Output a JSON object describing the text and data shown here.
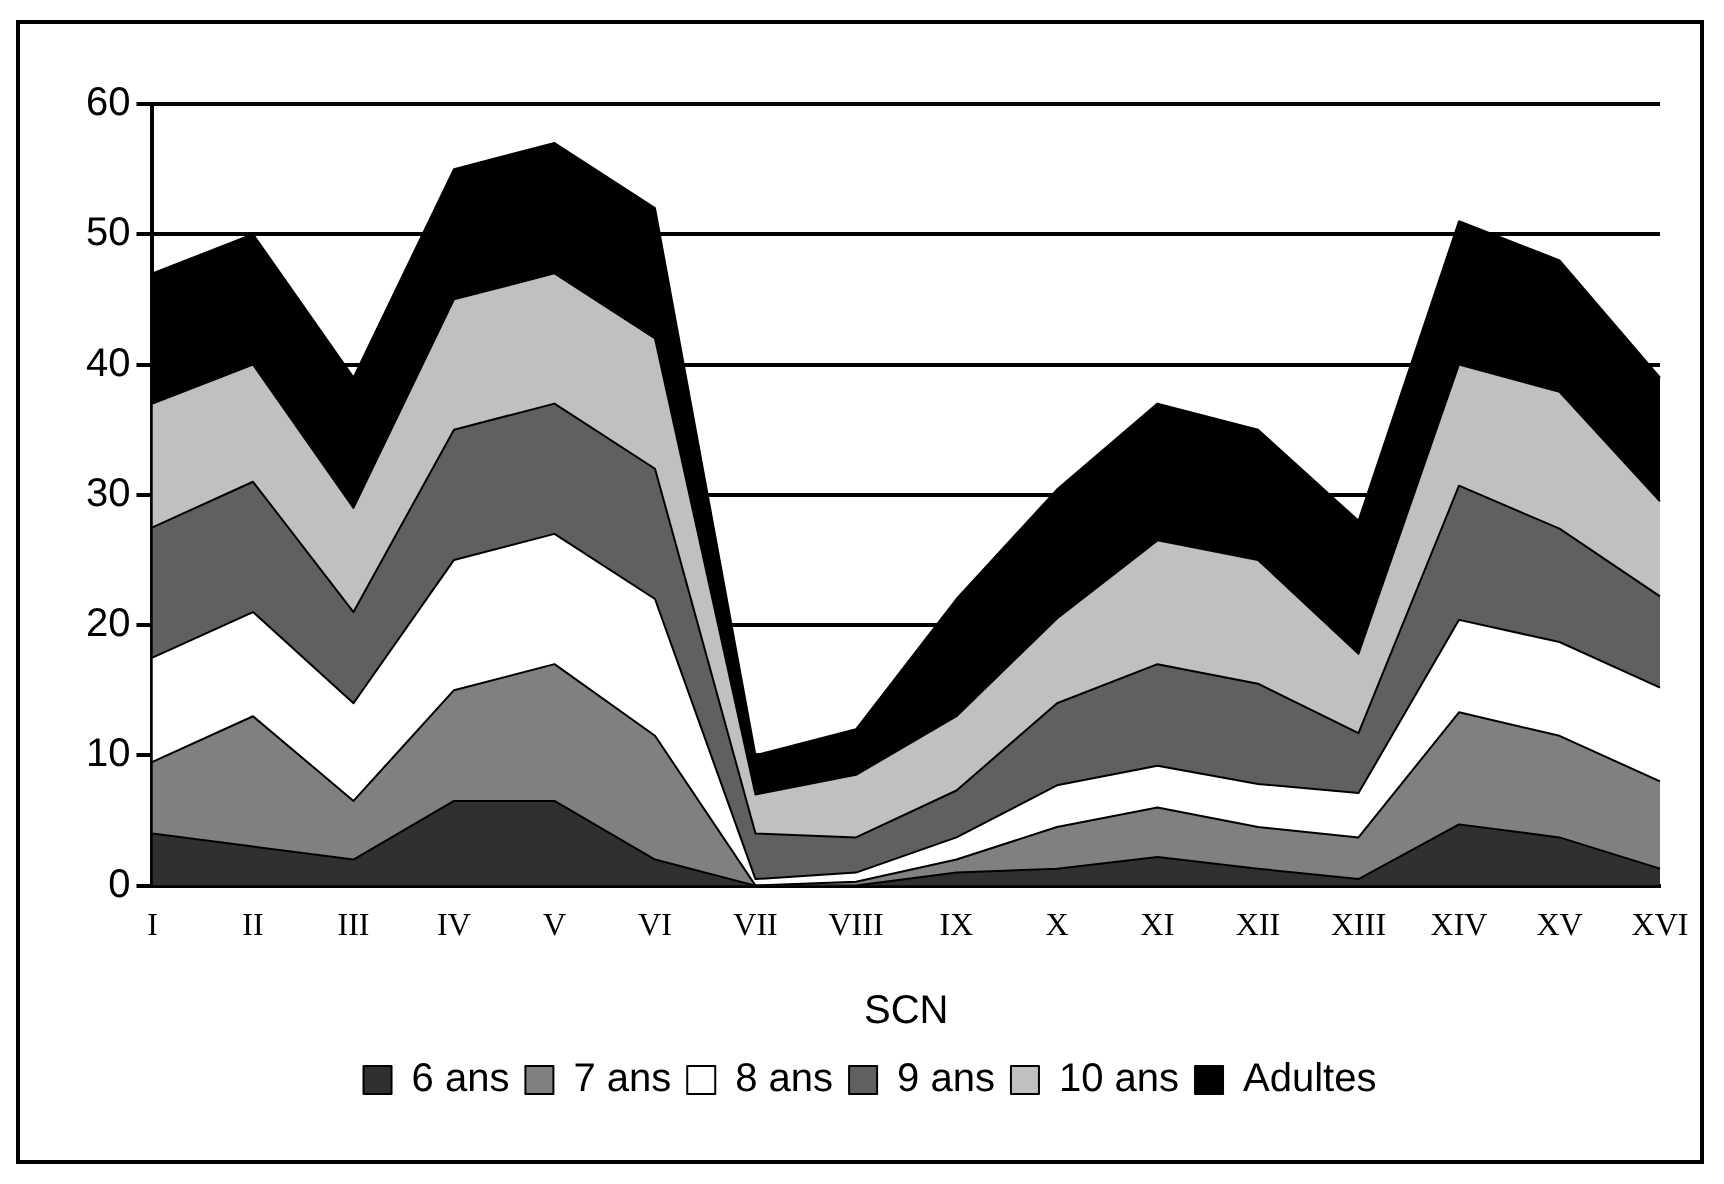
{
  "chart_data": {
    "type": "area",
    "stacked": true,
    "xlabel": "SCN",
    "categories": [
      "I",
      "II",
      "III",
      "IV",
      "V",
      "VI",
      "VII",
      "VIII",
      "IX",
      "X",
      "XI",
      "XII",
      "XIII",
      "XIV",
      "XV",
      "XVI"
    ],
    "series": [
      {
        "name": "6 ans",
        "color": "#303030",
        "values": [
          4,
          3,
          2,
          6.5,
          6.5,
          2,
          0,
          0,
          1,
          1.3,
          2.2,
          1.3,
          0.5,
          4.7,
          3.7,
          1.3
        ]
      },
      {
        "name": "7 ans",
        "color": "#808080",
        "values": [
          5.5,
          10,
          4.5,
          8.5,
          10.5,
          9.5,
          0,
          0.3,
          1,
          3.2,
          3.8,
          3.2,
          3.2,
          8.6,
          7.8,
          6.7
        ]
      },
      {
        "name": "8 ans",
        "color": "#ffffff",
        "values": [
          8,
          8,
          7.5,
          10,
          10,
          10.5,
          0.5,
          0.7,
          1.7,
          3.2,
          3.2,
          3.3,
          3.4,
          7.1,
          7.2,
          7.2
        ]
      },
      {
        "name": "9 ans",
        "color": "#606060",
        "values": [
          10,
          10,
          7,
          10,
          10,
          10,
          3.5,
          2.7,
          3.6,
          6.3,
          7.8,
          7.7,
          4.6,
          10.3,
          8.7,
          7
        ]
      },
      {
        "name": "10 ans",
        "color": "#c0c0c0",
        "values": [
          9.5,
          9,
          8,
          10,
          10,
          10,
          3,
          4.8,
          5.7,
          6.5,
          9.5,
          9.5,
          6.1,
          9.3,
          10.5,
          7.3
        ]
      },
      {
        "name": "Adultes",
        "color": "#000000",
        "values": [
          10,
          10,
          10,
          10,
          10,
          10,
          3,
          3.5,
          9,
          9.9,
          10.5,
          10,
          10.2,
          11,
          10.1,
          9.5
        ]
      }
    ],
    "ylim": [
      0,
      60
    ],
    "yticks": [
      0,
      10,
      20,
      30,
      40,
      50,
      60
    ],
    "grid": "y",
    "legend": "bottom"
  }
}
